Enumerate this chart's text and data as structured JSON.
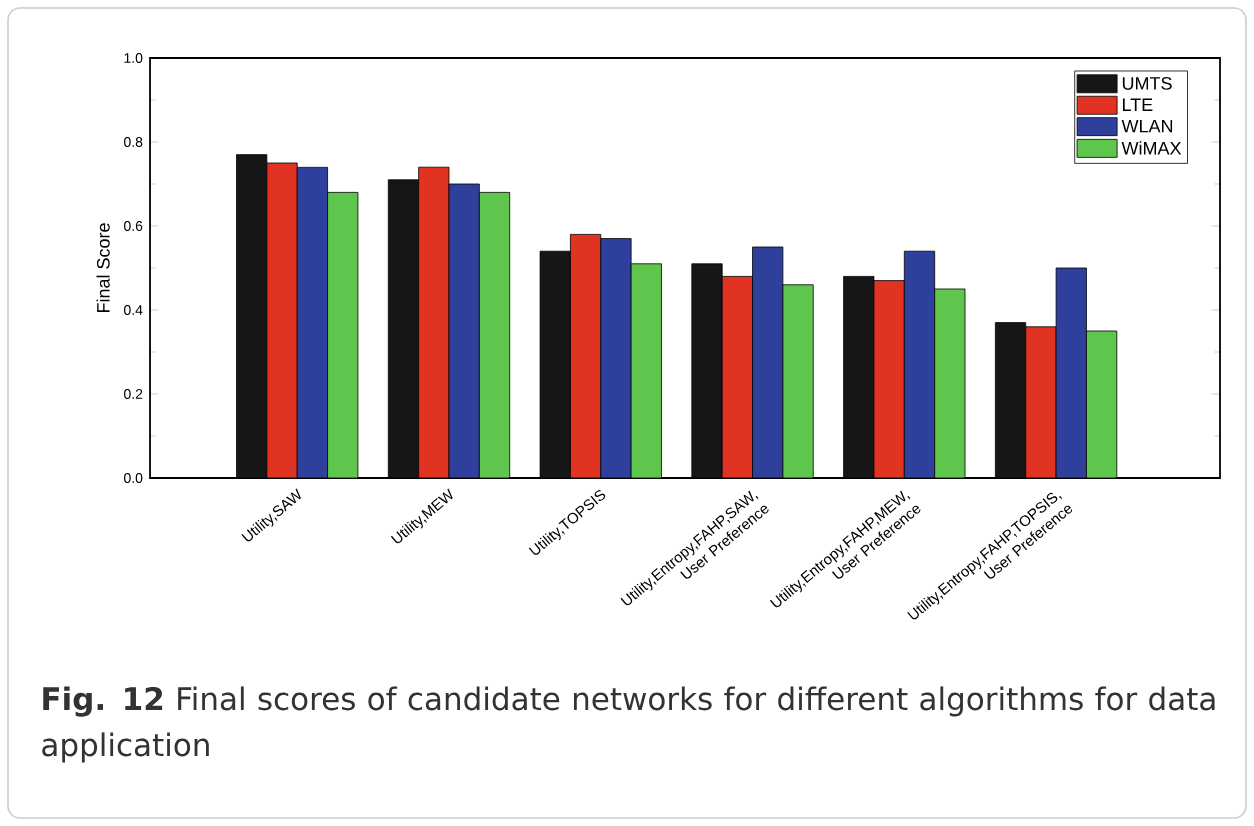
{
  "chart_data": {
    "type": "bar",
    "ylabel": "Final Score",
    "categories": [
      "Utility,SAW",
      "Utility,MEW",
      "Utility,TOPSIS",
      "Utility,Entropy,FAHP,SAW, User Preference",
      "Utility,Entropy,FAHP,MEW, User Preference",
      "Utility,Entropy,FAHP,TOPSIS, User Preference"
    ],
    "series": [
      {
        "name": "UMTS",
        "color": "#161616",
        "values": [
          0.77,
          0.71,
          0.54,
          0.51,
          0.48,
          0.37
        ]
      },
      {
        "name": "LTE",
        "color": "#e03322",
        "values": [
          0.75,
          0.74,
          0.58,
          0.48,
          0.47,
          0.36
        ]
      },
      {
        "name": "WLAN",
        "color": "#2f409c",
        "values": [
          0.74,
          0.7,
          0.57,
          0.55,
          0.54,
          0.5
        ]
      },
      {
        "name": "WiMAX",
        "color": "#5ec64c",
        "values": [
          0.68,
          0.68,
          0.51,
          0.46,
          0.45,
          0.35
        ]
      }
    ],
    "ylim": [
      0,
      1
    ],
    "yticks": [
      {
        "value": 0,
        "label": "0.0"
      },
      {
        "value": 0.2,
        "label": "0.2"
      },
      {
        "value": 0.4,
        "label": "0.4"
      },
      {
        "value": 0.6,
        "label": "0.6"
      },
      {
        "value": 0.8,
        "label": "0.8"
      },
      {
        "value": 1,
        "label": "1.0"
      }
    ],
    "legend": "top right",
    "annotations": [
      "**Fig. 12** Final scores of candidate networks for different algorithms for data application"
    ]
  }
}
